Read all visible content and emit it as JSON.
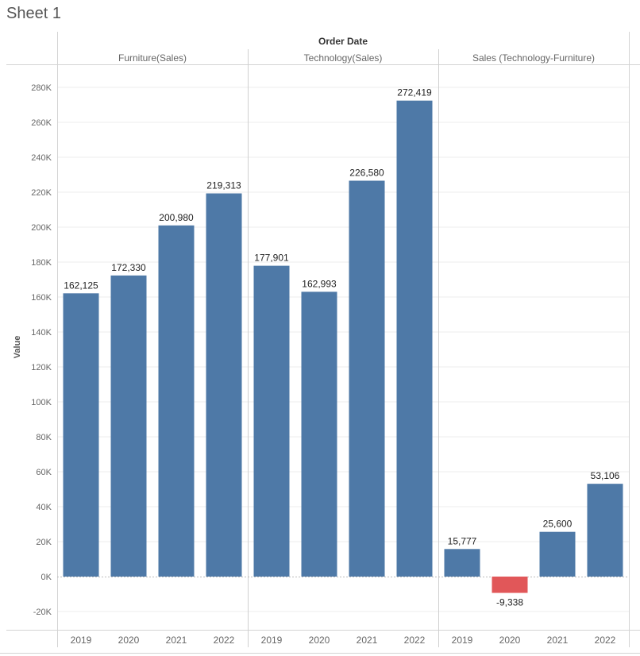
{
  "sheet": {
    "title": "Sheet 1"
  },
  "chart_data": {
    "type": "bar",
    "column_header": "Order Date",
    "ylabel": "Value",
    "ylim": [
      -30000,
      290000
    ],
    "yticks": [
      -20000,
      0,
      20000,
      40000,
      60000,
      80000,
      100000,
      120000,
      140000,
      160000,
      180000,
      200000,
      220000,
      240000,
      260000,
      280000
    ],
    "ytick_labels": [
      "-20K",
      "0K",
      "20K",
      "40K",
      "60K",
      "80K",
      "100K",
      "120K",
      "140K",
      "160K",
      "180K",
      "200K",
      "220K",
      "240K",
      "260K",
      "280K"
    ],
    "grid": true,
    "colors": {
      "positive": "#4e79a7",
      "negative": "#e15759"
    },
    "panels": [
      {
        "name": "Furniture(Sales)",
        "categories": [
          "2019",
          "2020",
          "2021",
          "2022"
        ],
        "values": [
          162125,
          172330,
          200980,
          219313
        ],
        "labels": [
          "162,125",
          "172,330",
          "200,980",
          "219,313"
        ]
      },
      {
        "name": "Technology(Sales)",
        "categories": [
          "2019",
          "2020",
          "2021",
          "2022"
        ],
        "values": [
          177901,
          162993,
          226580,
          272419
        ],
        "labels": [
          "177,901",
          "162,993",
          "226,580",
          "272,419"
        ]
      },
      {
        "name": "Sales (Technology-Furniture)",
        "categories": [
          "2019",
          "2020",
          "2021",
          "2022"
        ],
        "values": [
          15777,
          -9338,
          25600,
          53106
        ],
        "labels": [
          "15,777",
          "-9,338",
          "25,600",
          "53,106"
        ]
      }
    ]
  }
}
